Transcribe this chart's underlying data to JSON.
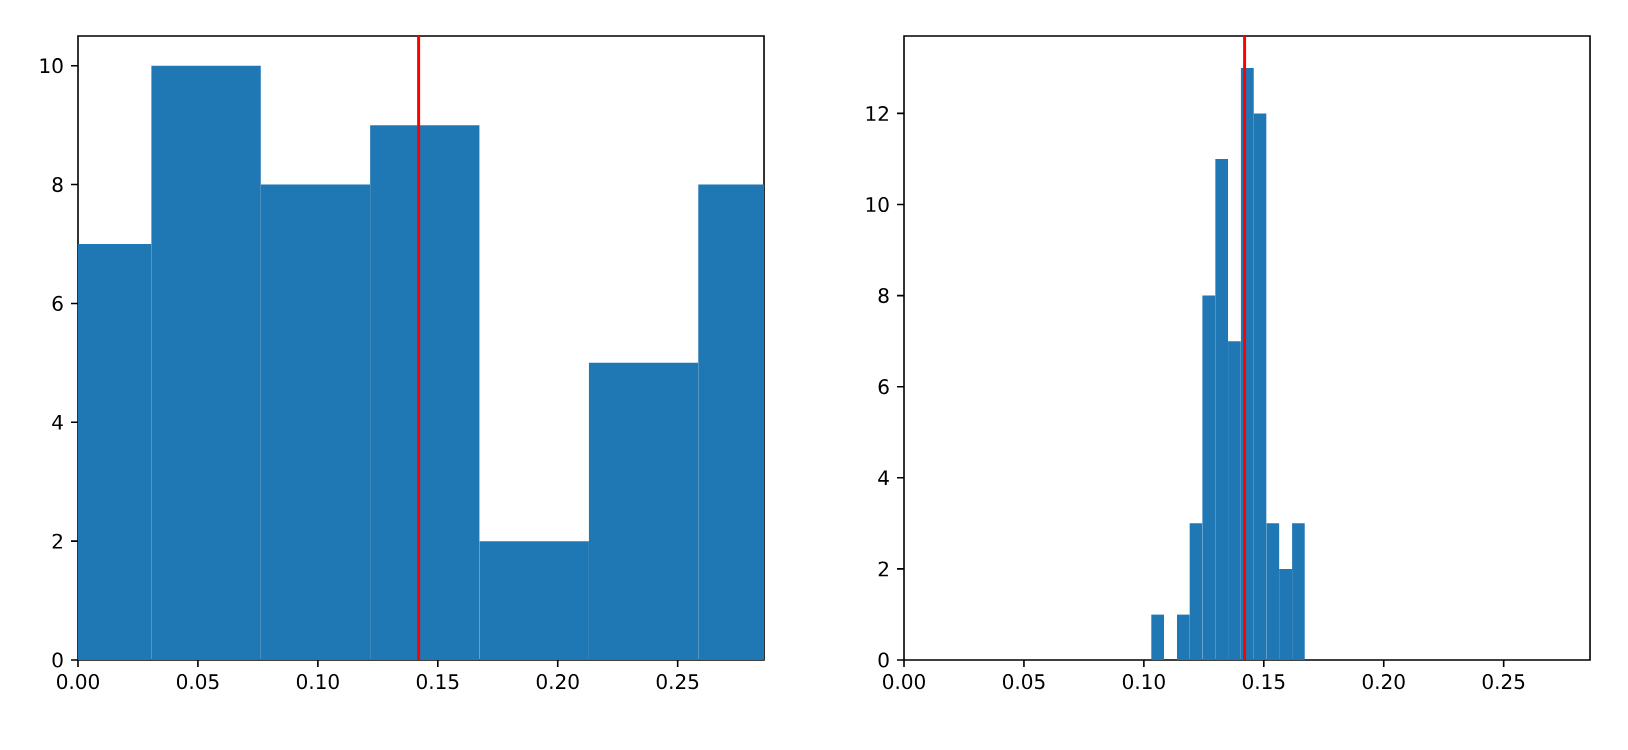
{
  "chart_data": [
    {
      "type": "histogram",
      "bins": [
        -0.015,
        0.0306,
        0.0762,
        0.1218,
        0.1674,
        0.213,
        0.2586,
        0.3042
      ],
      "values": [
        7,
        10,
        8,
        9,
        2,
        5,
        8
      ],
      "color": "#1f77b4",
      "xlim": [
        0,
        0.286
      ],
      "ylim": [
        0,
        10.5
      ],
      "xticks": [
        {
          "value": 0,
          "label": "0.00"
        },
        {
          "value": 0.05,
          "label": "0.05"
        },
        {
          "value": 0.1,
          "label": "0.10"
        },
        {
          "value": 0.15,
          "label": "0.15"
        },
        {
          "value": 0.2,
          "label": "0.20"
        },
        {
          "value": 0.25,
          "label": "0.25"
        }
      ],
      "yticks": [
        0,
        2,
        4,
        6,
        8,
        10
      ],
      "grid": false,
      "ref_lines": [
        {
          "axis": "x",
          "value": 0.142,
          "color": "#ff0000"
        }
      ]
    },
    {
      "type": "histogram",
      "bins": [
        0.1031,
        0.1084,
        0.1138,
        0.1191,
        0.1244,
        0.1298,
        0.1351,
        0.1404,
        0.1458,
        0.1511,
        0.1564,
        0.1618,
        0.1671
      ],
      "values": [
        1,
        0,
        1,
        3,
        8,
        11,
        7,
        13,
        12,
        3,
        2,
        3
      ],
      "color": "#1f77b4",
      "xlim": [
        0,
        0.286
      ],
      "ylim": [
        0,
        13.7
      ],
      "xticks": [
        {
          "value": 0,
          "label": "0.00"
        },
        {
          "value": 0.05,
          "label": "0.05"
        },
        {
          "value": 0.1,
          "label": "0.10"
        },
        {
          "value": 0.15,
          "label": "0.15"
        },
        {
          "value": 0.2,
          "label": "0.20"
        },
        {
          "value": 0.25,
          "label": "0.25"
        }
      ],
      "yticks": [
        0,
        2,
        4,
        6,
        8,
        10,
        12
      ],
      "grid": false,
      "ref_lines": [
        {
          "axis": "x",
          "value": 0.142,
          "color": "#ff0000"
        }
      ]
    }
  ]
}
